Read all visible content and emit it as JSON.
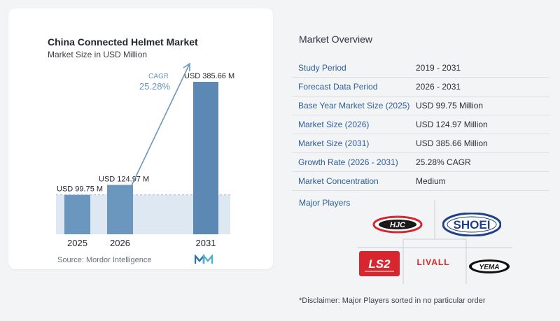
{
  "chart": {
    "title": "China Connected Helmet Market",
    "subtitle": "Market Size in USD Million",
    "source": "Source: Mordor Intelligence",
    "cagr_label": "CAGR",
    "cagr_value": "25.28%"
  },
  "chart_data": {
    "type": "bar",
    "title": "China Connected Helmet Market",
    "subtitle": "Market Size in USD Million",
    "categories": [
      "2025",
      "2026",
      "2031"
    ],
    "values": [
      99.75,
      124.97,
      385.66
    ],
    "data_labels": [
      "USD 99.75 M",
      "USD 124.97 M",
      "USD 385.66 M"
    ],
    "xlabel": "",
    "ylabel": "",
    "ylim": [
      0,
      400
    ],
    "grid": false,
    "bar_color": "#6b96bd",
    "highlight_bar_color": "#5b89b4",
    "band_color": "#dde8f2",
    "arrow_color": "#6b96bd",
    "cagr_color": "#6b96bd"
  },
  "overview": {
    "title": "Market Overview",
    "rows": [
      {
        "label": "Study Period",
        "value": "2019 - 2031"
      },
      {
        "label": "Forecast Data Period",
        "value": "2026 - 2031"
      },
      {
        "label": "Base Year Market Size (2025)",
        "value": "USD 99.75 Million"
      },
      {
        "label": "Market Size (2026)",
        "value": "USD 124.97 Million"
      },
      {
        "label": "Market Size (2031)",
        "value": "USD 385.66 Million"
      },
      {
        "label": "Growth Rate (2026 - 2031)",
        "value": "25.28% CAGR"
      },
      {
        "label": "Market Concentration",
        "value": "Medium"
      }
    ]
  },
  "players": {
    "title": "Major Players",
    "logos": {
      "hjc": "HJC",
      "shoei": "SHOEI",
      "ls2": "LS2",
      "livall": "LIVALL",
      "yema": "YEMA"
    }
  },
  "disclaimer": "*Disclaimer: Major Players sorted in no particular order",
  "colors": {
    "accent_blue": "#2d5e9b",
    "logo_red": "#d7262e",
    "logo_navy": "#1f3f86"
  }
}
